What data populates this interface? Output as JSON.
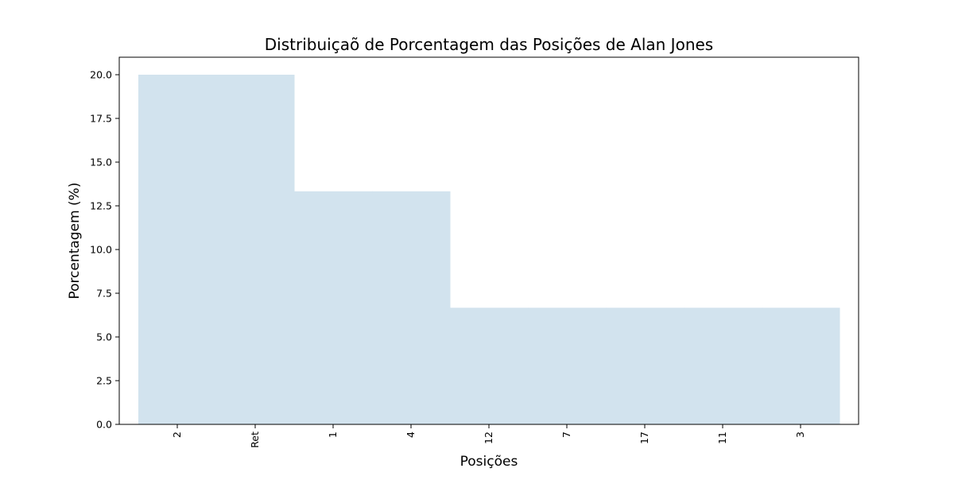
{
  "chart_data": {
    "type": "bar",
    "title": "Distribuiçaõ de Porcentagem das Posições de Alan Jones",
    "xlabel": "Posições",
    "ylabel": "Porcentagem (%)",
    "categories": [
      "2",
      "Ret",
      "1",
      "4",
      "12",
      "7",
      "17",
      "11",
      "3"
    ],
    "values": [
      20.0,
      20.0,
      13.33,
      13.33,
      6.67,
      6.67,
      6.67,
      6.67,
      6.67
    ],
    "ylim": [
      0,
      21
    ],
    "yticks": [
      "0.0",
      "2.5",
      "5.0",
      "7.5",
      "10.0",
      "12.5",
      "15.0",
      "17.5",
      "20.0"
    ],
    "grid": false,
    "bar_color": "#d2e3ee"
  }
}
